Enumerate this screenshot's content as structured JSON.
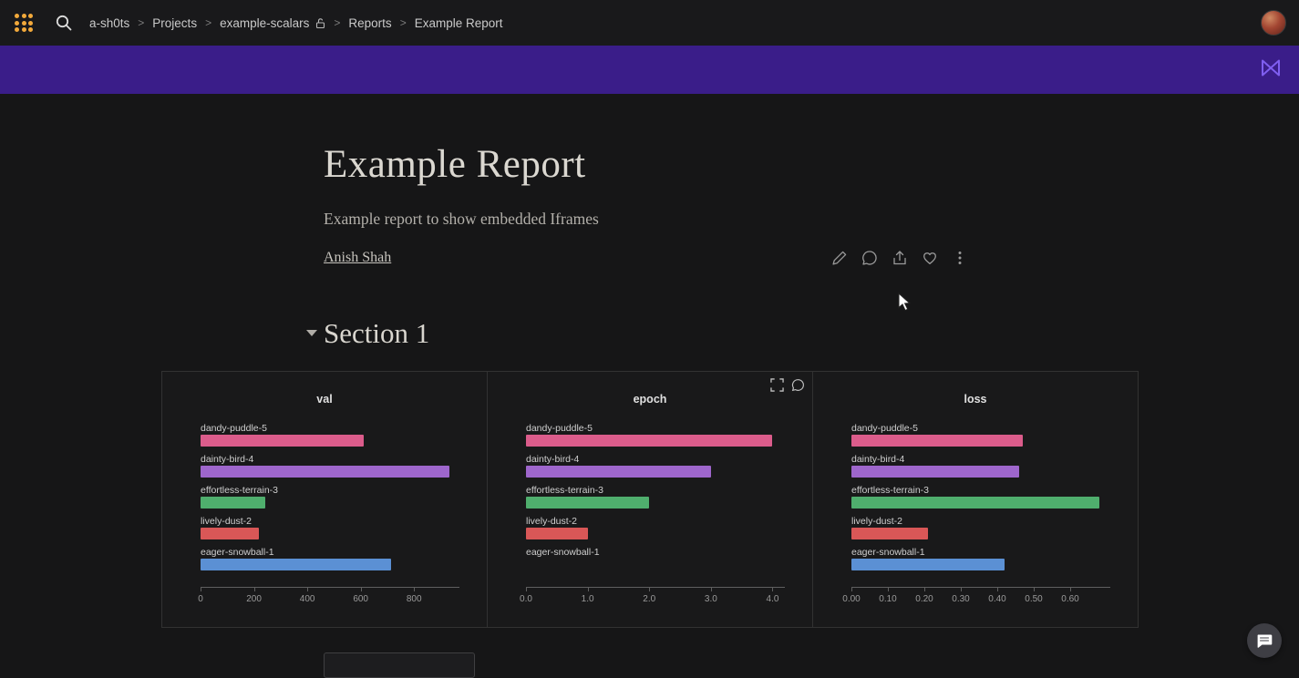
{
  "navbar": {
    "breadcrumb": [
      "a-sh0ts",
      "Projects",
      "example-scalars",
      "Reports",
      "Example Report"
    ],
    "separator": ">",
    "icons": [
      "wandb-dots-logo",
      "search-icon",
      "unlock-icon",
      "user-avatar"
    ]
  },
  "banner": {
    "color": "#3a1d89",
    "icon": "wandb-bowtie-icon",
    "icon_color": "#7f5ef0"
  },
  "report": {
    "title": "Example Report",
    "subtitle": "Example report to show embedded Iframes",
    "author": "Anish Shah",
    "action_icons": [
      "edit-pencil-icon",
      "comment-icon",
      "share-icon",
      "heart-icon",
      "kebab-menu-icon"
    ]
  },
  "section": {
    "title": "Section 1"
  },
  "runs": [
    {
      "name": "dandy-puddle-5",
      "color": "#db5c8b"
    },
    {
      "name": "dainty-bird-4",
      "color": "#9e66cc"
    },
    {
      "name": "effortless-terrain-3",
      "color": "#4fae6d"
    },
    {
      "name": "lively-dust-2",
      "color": "#d95757"
    },
    {
      "name": "eager-snowball-1",
      "color": "#5b90d4"
    }
  ],
  "chart_data": [
    {
      "type": "bar",
      "orientation": "horizontal",
      "title": "val",
      "categories": [
        "dandy-puddle-5",
        "dainty-bird-4",
        "effortless-terrain-3",
        "lively-dust-2",
        "eager-snowball-1"
      ],
      "values": [
        613,
        932,
        244,
        217,
        715
      ],
      "xmax": 970,
      "ticks": [
        {
          "label": "0",
          "value": 0
        },
        {
          "label": "200",
          "value": 200
        },
        {
          "label": "400",
          "value": 400
        },
        {
          "label": "600",
          "value": 600
        },
        {
          "label": "800",
          "value": 800
        }
      ],
      "hover_icons": false
    },
    {
      "type": "bar",
      "orientation": "horizontal",
      "title": "epoch",
      "categories": [
        "dandy-puddle-5",
        "dainty-bird-4",
        "effortless-terrain-3",
        "lively-dust-2",
        "eager-snowball-1"
      ],
      "values": [
        4.0,
        3.0,
        2.0,
        1.0,
        0.0
      ],
      "xmax": 4.2,
      "ticks": [
        {
          "label": "0.0",
          "value": 0.0
        },
        {
          "label": "1.0",
          "value": 1.0
        },
        {
          "label": "2.0",
          "value": 2.0
        },
        {
          "label": "3.0",
          "value": 3.0
        },
        {
          "label": "4.0",
          "value": 4.0
        }
      ],
      "hover_icons": true
    },
    {
      "type": "bar",
      "orientation": "horizontal",
      "title": "loss",
      "categories": [
        "dandy-puddle-5",
        "dainty-bird-4",
        "effortless-terrain-3",
        "lively-dust-2",
        "eager-snowball-1"
      ],
      "values": [
        0.47,
        0.46,
        0.68,
        0.21,
        0.42
      ],
      "xmax": 0.71,
      "ticks": [
        {
          "label": "0.00",
          "value": 0.0
        },
        {
          "label": "0.10",
          "value": 0.1
        },
        {
          "label": "0.20",
          "value": 0.2
        },
        {
          "label": "0.30",
          "value": 0.3
        },
        {
          "label": "0.40",
          "value": 0.4
        },
        {
          "label": "0.50",
          "value": 0.5
        },
        {
          "label": "0.60",
          "value": 0.6
        }
      ],
      "hover_icons": false
    }
  ]
}
